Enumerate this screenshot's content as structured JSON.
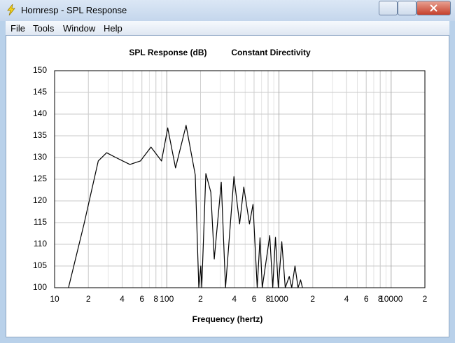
{
  "window": {
    "title": "Hornresp - SPL Response"
  },
  "menu": [
    "File",
    "Tools",
    "Window",
    "Help"
  ],
  "chart_data": {
    "type": "line",
    "title": "SPL Response (dB)",
    "subtitle": "Constant Directivity",
    "x_label": "Frequency (hertz)",
    "log_x": true,
    "grid": true,
    "minor_grid": true,
    "xlim": [
      10,
      20000
    ],
    "xticks": [
      10,
      {
        "value": 20,
        "label": "2"
      },
      {
        "value": 40,
        "label": "4"
      },
      {
        "value": 60,
        "label": "6"
      },
      {
        "value": 80,
        "label": "8"
      },
      100,
      {
        "value": 200,
        "label": "2"
      },
      {
        "value": 400,
        "label": "4"
      },
      {
        "value": 600,
        "label": "6"
      },
      {
        "value": 800,
        "label": "8"
      },
      1000,
      {
        "value": 2000,
        "label": "2"
      },
      {
        "value": 4000,
        "label": "4"
      },
      {
        "value": 6000,
        "label": "6"
      },
      {
        "value": 8000,
        "label": "8"
      },
      10000,
      {
        "value": 20000,
        "label": "2"
      }
    ],
    "ylim": [
      100,
      150
    ],
    "yticks": [
      100,
      105,
      110,
      115,
      120,
      125,
      130,
      135,
      140,
      145,
      150
    ],
    "x": [
      13.3,
      18.3,
      24.5,
      29.1,
      35.1,
      46.9,
      58.2,
      72.3,
      89.8,
      102,
      119.7,
      148.6,
      179.4,
      193,
      201,
      205,
      223,
      247,
      265,
      306,
      334,
      397,
      446,
      486,
      546,
      587,
      640,
      678,
      710,
      828,
      880,
      931,
      987,
      1060,
      1138,
      1236,
      1300,
      1390,
      1480,
      1560,
      1620
    ],
    "series": [
      {
        "color": "#000000",
        "values": [
          100,
          114.7,
          129.2,
          131.1,
          130,
          128.4,
          129.2,
          132.4,
          129.2,
          136.8,
          127.6,
          137.4,
          126,
          100,
          105,
          100,
          126.3,
          122,
          106.6,
          124.3,
          100,
          125.6,
          114.7,
          123.2,
          114.7,
          119.2,
          100,
          111.5,
          100,
          112,
          100,
          111.6,
          100,
          110.6,
          100,
          102.6,
          100,
          105,
          100,
          101.8,
          100
        ]
      }
    ]
  }
}
